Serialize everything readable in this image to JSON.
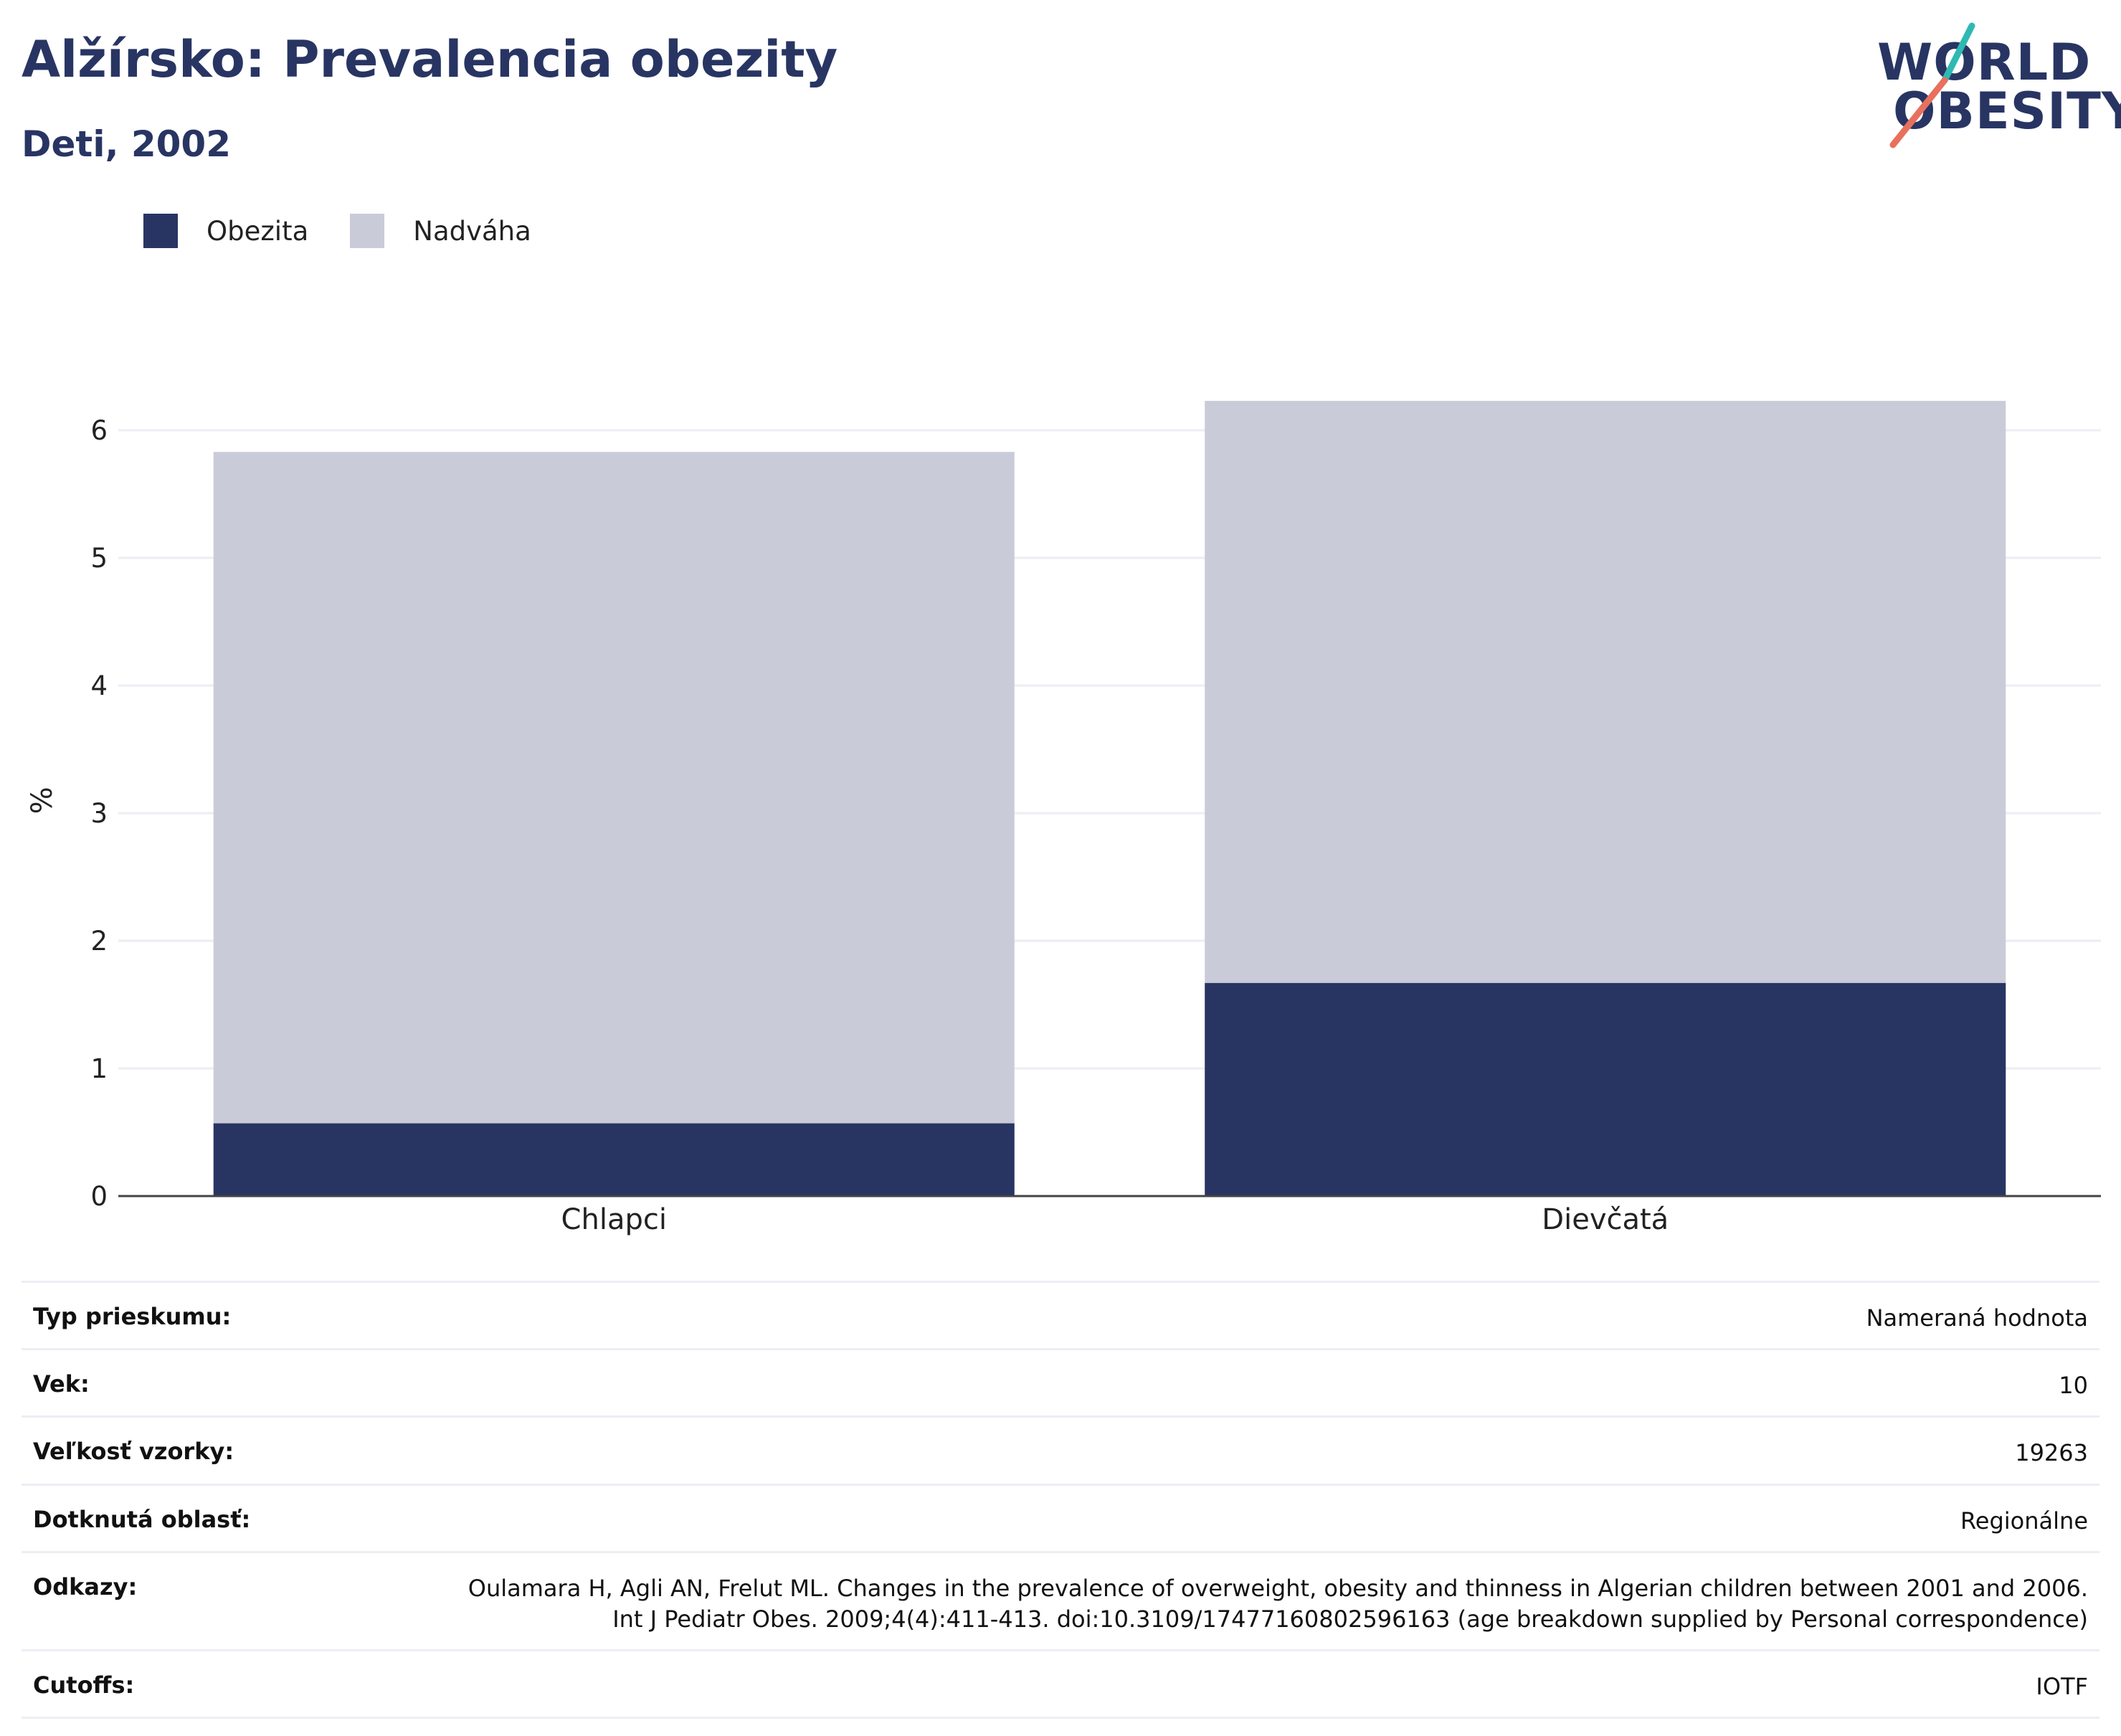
{
  "header": {
    "title": "Alžírsko: Prevalencia obezity",
    "subtitle": "Deti, 2002"
  },
  "logo": {
    "line1": "WORLD",
    "line2": "OBESITY",
    "colors": {
      "text": "#283563",
      "teal": "#2fb9b3",
      "coral": "#e8715d"
    }
  },
  "colors": {
    "obesity": "#283563",
    "overweight": "#c9ccd8",
    "grid": "#eceef4",
    "axis": "#444444"
  },
  "chart_data": {
    "type": "bar",
    "stacked": true,
    "categories": [
      "Chlapci",
      "Dievčatá"
    ],
    "series": [
      {
        "name": "Obezita",
        "color": "#283563",
        "values": [
          0.57,
          1.67
        ]
      },
      {
        "name": "Nadváha",
        "color": "#c9ccd8",
        "values": [
          5.26,
          4.56
        ]
      }
    ],
    "ylabel": "%",
    "xlabel": "",
    "ylim": [
      0,
      6.2
    ],
    "yticks": [
      0,
      1,
      2,
      3,
      4,
      5,
      6
    ],
    "grid": true,
    "legend": "top-left"
  },
  "info": [
    {
      "key": "Typ prieskumu:",
      "value": "Nameraná hodnota"
    },
    {
      "key": "Vek:",
      "value": "10"
    },
    {
      "key": "Veľkosť vzorky:",
      "value": "19263"
    },
    {
      "key": "Dotknutá oblasť:",
      "value": "Regionálne"
    },
    {
      "key": "Odkazy:",
      "value": "Oulamara H, Agli AN, Frelut ML. Changes in the prevalence of overweight, obesity and thinness in Algerian children between 2001 and 2006. Int J Pediatr Obes. 2009;4(4):411-413. doi:10.3109/17477160802596163 (age breakdown supplied by Personal correspondence)"
    },
    {
      "key": "Cutoffs:",
      "value": "IOTF"
    }
  ]
}
